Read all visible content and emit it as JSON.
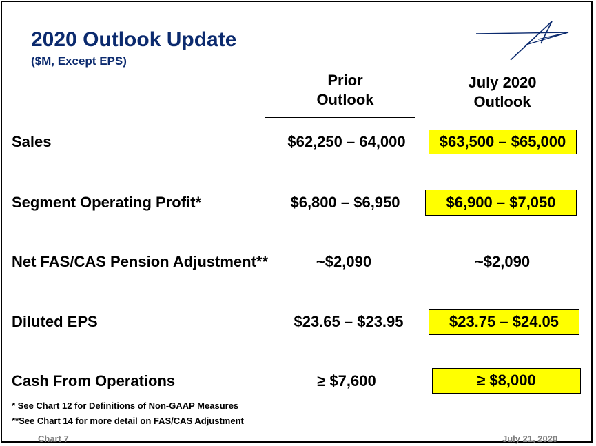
{
  "slide": {
    "title": "2020 Outlook Update",
    "subtitle": "($M, Except EPS)"
  },
  "columns": {
    "prior": [
      "Prior",
      "Outlook"
    ],
    "new": [
      "July 2020",
      "Outlook"
    ]
  },
  "rows": [
    {
      "label": "Sales",
      "prior": "$62,250 – 64,000",
      "new": "$63,500 – $65,000",
      "highlight": true
    },
    {
      "label": "Segment Operating Profit*",
      "prior": "$6,800 – $6,950",
      "new": "$6,900 – $7,050",
      "highlight": true
    },
    {
      "label": "Net FAS/CAS Pension Adjustment**",
      "prior": "~$2,090",
      "new": "~$2,090",
      "highlight": false
    },
    {
      "label": "Diluted EPS",
      "prior": "$23.65 – $23.95",
      "new": "$23.75 – $24.05",
      "highlight": true
    },
    {
      "label": "Cash From Operations",
      "prior": "≥ $7,600",
      "new": "≥ $8,000",
      "highlight": true
    }
  ],
  "footnotes": [
    "* See Chart 12 for Definitions of Non-GAAP Measures",
    "**See Chart 14 for more detail on FAS/CAS Adjustment"
  ],
  "footer": {
    "chart_label": "Chart 7",
    "date": "July 21, 2020"
  },
  "colors": {
    "title": "#0b2a6e",
    "highlight": "#ffff00",
    "footer_text": "#7f7f7f"
  }
}
